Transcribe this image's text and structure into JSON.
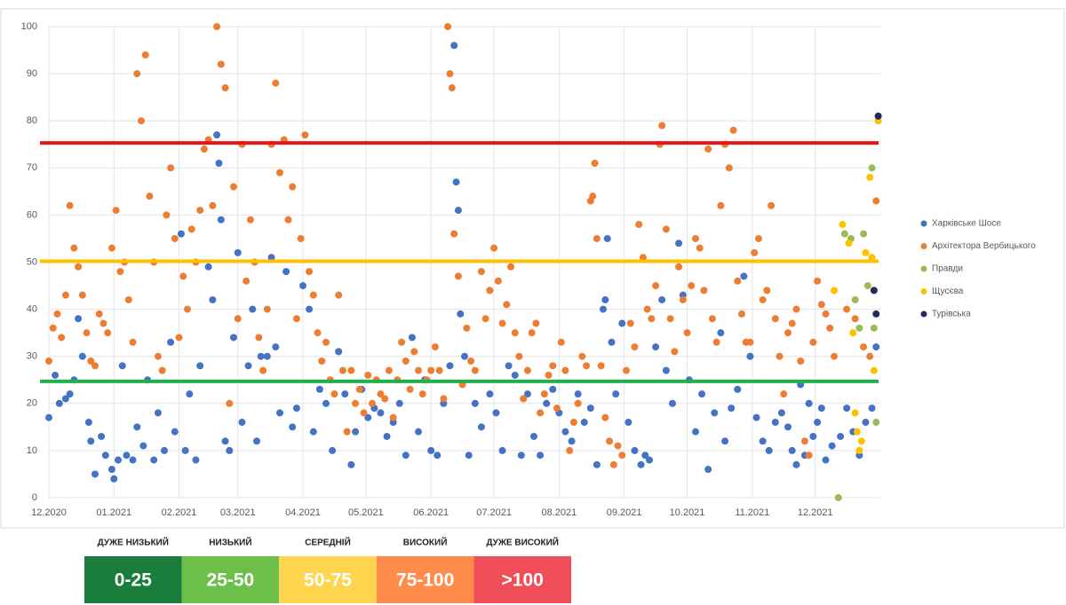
{
  "chart_data": {
    "type": "scatter",
    "xlim": [
      0,
      396
    ],
    "ylim": [
      0,
      100
    ],
    "xticks": [
      {
        "value": 0,
        "label": "12.2020"
      },
      {
        "value": 31,
        "label": "01.2021"
      },
      {
        "value": 62,
        "label": "02.2021"
      },
      {
        "value": 90,
        "label": "03.2021"
      },
      {
        "value": 121,
        "label": "04.2021"
      },
      {
        "value": 151,
        "label": "05.2021"
      },
      {
        "value": 182,
        "label": "06.2021"
      },
      {
        "value": 212,
        "label": "07.2021"
      },
      {
        "value": 243,
        "label": "08.2021"
      },
      {
        "value": 274,
        "label": "09.2021"
      },
      {
        "value": 304,
        "label": "10.2021"
      },
      {
        "value": 335,
        "label": "11.2021"
      },
      {
        "value": 365,
        "label": "12.2021"
      }
    ],
    "yticks": [
      0,
      10,
      20,
      30,
      40,
      50,
      60,
      70,
      80,
      90,
      100
    ],
    "grid": true,
    "legend": "right",
    "reference_lines": [
      {
        "value": 75.3,
        "color": "#e8141a"
      },
      {
        "value": 50.2,
        "color": "#ffc000"
      },
      {
        "value": 24.7,
        "color": "#21b04b"
      }
    ],
    "series": [
      {
        "name": "Харківське Шосе",
        "color": "#4472c4",
        "x": [
          0,
          3,
          5,
          8,
          10,
          12,
          14,
          16,
          19,
          20,
          22,
          25,
          27,
          30,
          31,
          33,
          35,
          37,
          40,
          42,
          45,
          47,
          50,
          52,
          55,
          58,
          60,
          63,
          65,
          67,
          70,
          72,
          76,
          78,
          80,
          81,
          82,
          84,
          86,
          88,
          90,
          92,
          95,
          97,
          99,
          101,
          104,
          106,
          108,
          110,
          113,
          116,
          118,
          121,
          124,
          126,
          129,
          132,
          135,
          138,
          141,
          144,
          146,
          149,
          152,
          155,
          158,
          161,
          164,
          167,
          170,
          173,
          176,
          179,
          182,
          185,
          188,
          191,
          193,
          194,
          195,
          196,
          198,
          200,
          203,
          206,
          210,
          213,
          216,
          219,
          222,
          225,
          228,
          231,
          234,
          237,
          240,
          243,
          246,
          249,
          252,
          255,
          258,
          261,
          264,
          265,
          266,
          268,
          270,
          273,
          276,
          279,
          282,
          284,
          286,
          289,
          292,
          294,
          297,
          300,
          302,
          305,
          308,
          311,
          314,
          317,
          320,
          322,
          325,
          328,
          331,
          334,
          337,
          340,
          343,
          346,
          349,
          352,
          354,
          356,
          358,
          360,
          362,
          364,
          366,
          368,
          370,
          373,
          377,
          380,
          383,
          386,
          389,
          392,
          394
        ],
        "values": [
          17,
          26,
          20,
          21,
          22,
          25,
          38,
          30,
          16,
          12,
          5,
          13,
          9,
          6,
          4,
          8,
          28,
          9,
          8,
          15,
          11,
          25,
          8,
          18,
          10,
          33,
          14,
          56,
          10,
          22,
          8,
          28,
          49,
          42,
          77,
          71,
          59,
          12,
          10,
          34,
          52,
          16,
          28,
          40,
          12,
          30,
          30,
          51,
          32,
          18,
          48,
          15,
          19,
          45,
          40,
          14,
          23,
          20,
          10,
          31,
          22,
          7,
          14,
          23,
          17,
          19,
          18,
          13,
          16,
          20,
          9,
          34,
          14,
          25,
          10,
          9,
          20,
          28,
          96,
          67,
          61,
          39,
          30,
          9,
          20,
          15,
          22,
          18,
          10,
          28,
          26,
          9,
          22,
          13,
          9,
          20,
          23,
          18,
          14,
          12,
          22,
          16,
          19,
          7,
          40,
          42,
          55,
          33,
          22,
          37,
          16,
          10,
          7,
          9,
          8,
          32,
          42,
          27,
          20,
          54,
          43,
          25,
          14,
          22,
          6,
          18,
          35,
          12,
          19,
          23,
          47,
          30,
          17,
          12,
          10,
          16,
          18,
          15,
          10,
          7,
          24,
          9,
          20,
          13,
          16,
          19,
          8,
          11,
          13,
          19,
          14,
          9,
          16,
          19,
          32
        ]
      },
      {
        "name": "Архітектора Вербицького",
        "color": "#ed7d31",
        "x": [
          0,
          2,
          4,
          6,
          8,
          10,
          12,
          14,
          16,
          18,
          20,
          22,
          24,
          26,
          28,
          30,
          32,
          34,
          36,
          38,
          40,
          42,
          44,
          46,
          48,
          50,
          52,
          54,
          56,
          58,
          60,
          62,
          64,
          66,
          68,
          70,
          72,
          74,
          76,
          78,
          80,
          82,
          84,
          86,
          88,
          90,
          92,
          94,
          96,
          98,
          100,
          102,
          104,
          106,
          108,
          110,
          112,
          114,
          116,
          118,
          120,
          122,
          124,
          126,
          128,
          130,
          132,
          134,
          136,
          138,
          140,
          142,
          144,
          146,
          148,
          150,
          152,
          154,
          156,
          158,
          160,
          162,
          164,
          166,
          168,
          170,
          172,
          174,
          176,
          178,
          180,
          182,
          184,
          186,
          188,
          190,
          191,
          192,
          193,
          195,
          197,
          199,
          201,
          203,
          206,
          208,
          210,
          212,
          214,
          216,
          218,
          220,
          222,
          224,
          226,
          228,
          230,
          232,
          234,
          236,
          238,
          240,
          242,
          244,
          246,
          248,
          250,
          252,
          254,
          256,
          258,
          259,
          260,
          261,
          263,
          265,
          267,
          269,
          271,
          273,
          275,
          277,
          279,
          281,
          283,
          285,
          287,
          289,
          291,
          292,
          294,
          296,
          298,
          300,
          302,
          304,
          306,
          308,
          310,
          312,
          314,
          316,
          318,
          320,
          322,
          324,
          326,
          328,
          330,
          332,
          334,
          336,
          338,
          340,
          342,
          344,
          346,
          348,
          350,
          352,
          354,
          356,
          358,
          360,
          362,
          364,
          366,
          368,
          370,
          372,
          374,
          380,
          384,
          388,
          391,
          394
        ],
        "values": [
          29,
          36,
          39,
          34,
          43,
          62,
          53,
          49,
          43,
          35,
          29,
          28,
          39,
          37,
          35,
          53,
          61,
          48,
          50,
          42,
          33,
          90,
          80,
          94,
          64,
          50,
          30,
          27,
          60,
          70,
          55,
          34,
          47,
          40,
          57,
          50,
          61,
          74,
          76,
          62,
          100,
          92,
          87,
          20,
          66,
          38,
          75,
          46,
          59,
          50,
          34,
          27,
          40,
          75,
          88,
          69,
          76,
          59,
          66,
          38,
          55,
          77,
          48,
          43,
          35,
          29,
          33,
          25,
          22,
          43,
          27,
          14,
          27,
          20,
          23,
          18,
          26,
          20,
          25,
          22,
          21,
          27,
          17,
          25,
          33,
          29,
          23,
          31,
          27,
          22,
          25,
          27,
          32,
          27,
          21,
          100,
          90,
          87,
          56,
          47,
          24,
          36,
          29,
          27,
          48,
          38,
          44,
          53,
          46,
          37,
          41,
          49,
          35,
          30,
          21,
          27,
          35,
          37,
          18,
          22,
          26,
          28,
          19,
          33,
          27,
          10,
          16,
          20,
          30,
          28,
          63,
          64,
          71,
          55,
          28,
          17,
          12,
          7,
          11,
          9,
          27,
          37,
          32,
          58,
          51,
          40,
          38,
          45,
          75,
          79,
          57,
          38,
          31,
          49,
          42,
          35,
          45,
          55,
          53,
          44,
          74,
          38,
          33,
          62,
          75,
          70,
          78,
          46,
          39,
          33,
          33,
          52,
          55,
          42,
          44,
          62,
          38,
          30,
          22,
          35,
          37,
          40,
          29,
          12,
          9,
          33,
          46,
          41,
          39,
          36,
          30,
          40,
          38,
          32,
          30,
          63
        ]
      },
      {
        "name": "Правди",
        "color": "#9bbb59",
        "x": [
          376,
          379,
          382,
          384,
          386,
          388,
          390,
          392,
          393,
          394
        ],
        "values": [
          0,
          56,
          55,
          42,
          36,
          56,
          45,
          70,
          36,
          16
        ]
      },
      {
        "name": "Щусєва",
        "color": "#ffc000",
        "x": [
          374,
          378,
          381,
          383,
          384,
          385,
          386,
          387,
          389,
          391,
          392,
          393,
          395
        ],
        "values": [
          44,
          58,
          54,
          35,
          18,
          14,
          10,
          12,
          52,
          68,
          51,
          27,
          80
        ]
      },
      {
        "name": "Турівська",
        "color": "#1f2d5a",
        "x": [
          393,
          394,
          395
        ],
        "values": [
          44,
          39,
          81
        ]
      }
    ]
  },
  "scale": [
    {
      "label": "ДУЖЕ НИЗЬКИЙ",
      "range": "0-25",
      "color": "#1a7d3c"
    },
    {
      "label": "НИЗЬКИЙ",
      "range": "25-50",
      "color": "#6cc04a"
    },
    {
      "label": "СЕРЕДНІЙ",
      "range": "50-75",
      "color": "#ffd54f"
    },
    {
      "label": "ВИСОКИЙ",
      "range": "75-100",
      "color": "#ff8c4a"
    },
    {
      "label": "ДУЖЕ ВИСОКИЙ",
      "range": ">100",
      "color": "#f04e58"
    }
  ]
}
